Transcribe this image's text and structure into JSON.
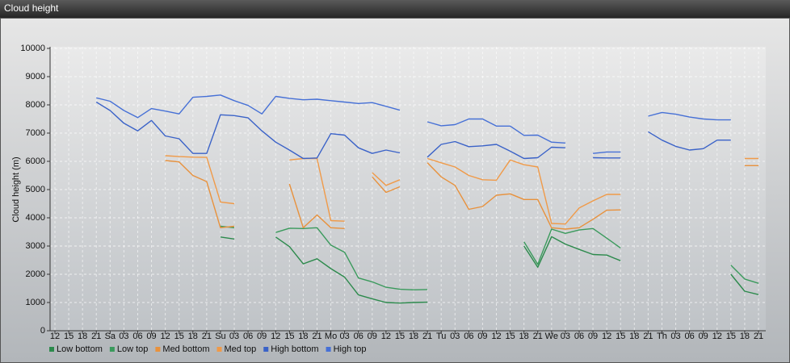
{
  "chart_data": {
    "type": "line",
    "title": "Cloud height",
    "y_label": "Cloud height (m)",
    "categories": [
      "12",
      "15",
      "18",
      "21",
      "Sa",
      "03",
      "06",
      "09",
      "12",
      "15",
      "18",
      "21",
      "Su",
      "03",
      "06",
      "09",
      "12",
      "15",
      "18",
      "21",
      "Mo",
      "03",
      "06",
      "09",
      "12",
      "15",
      "18",
      "21",
      "Tu",
      "03",
      "06",
      "09",
      "12",
      "15",
      "18",
      "21",
      "We",
      "03",
      "06",
      "09",
      "12",
      "15",
      "18",
      "21",
      "Th",
      "03",
      "06",
      "09",
      "12",
      "15",
      "18",
      "21"
    ],
    "ylim": [
      0,
      10000
    ],
    "yticks": [
      0,
      1000,
      2000,
      3000,
      4000,
      5000,
      6000,
      7000,
      8000,
      9000,
      10000
    ],
    "grid": true,
    "legend": "bottom-left",
    "series": [
      {
        "name": "Low bottom",
        "color": "#2c8a4c",
        "values": [
          null,
          null,
          null,
          null,
          null,
          null,
          null,
          null,
          null,
          null,
          null,
          null,
          3320,
          3250,
          null,
          null,
          3320,
          2980,
          2370,
          2550,
          2200,
          1900,
          1270,
          1130,
          1000,
          980,
          1000,
          1010,
          null,
          null,
          null,
          null,
          null,
          null,
          3000,
          2250,
          3330,
          3070,
          2880,
          2700,
          2680,
          2480,
          null,
          null,
          null,
          null,
          null,
          null,
          null,
          2000,
          1400,
          1280
        ]
      },
      {
        "name": "Low top",
        "color": "#3a9a5c",
        "values": [
          null,
          null,
          null,
          null,
          null,
          null,
          null,
          null,
          null,
          null,
          null,
          null,
          3700,
          3650,
          null,
          null,
          3480,
          3630,
          3620,
          3650,
          3030,
          2780,
          1870,
          1730,
          1540,
          1470,
          1450,
          1460,
          null,
          null,
          null,
          null,
          null,
          null,
          3150,
          2350,
          3600,
          3450,
          3570,
          3620,
          3280,
          2930,
          null,
          null,
          null,
          null,
          null,
          null,
          null,
          2320,
          1830,
          1680
        ]
      },
      {
        "name": "Med bottom",
        "color": "#e8913c",
        "values": [
          null,
          null,
          null,
          null,
          null,
          null,
          null,
          null,
          6030,
          5980,
          5500,
          5280,
          3650,
          3700,
          null,
          null,
          null,
          5200,
          3650,
          4100,
          3650,
          3620,
          null,
          5450,
          4900,
          5100,
          null,
          5950,
          5450,
          5150,
          4300,
          4400,
          4800,
          4850,
          4650,
          4650,
          3650,
          3600,
          3650,
          3950,
          4270,
          4280,
          null,
          null,
          null,
          null,
          null,
          null,
          null,
          null,
          5850,
          5850
        ]
      },
      {
        "name": "Med top",
        "color": "#f09a48",
        "values": [
          null,
          null,
          null,
          null,
          null,
          null,
          null,
          null,
          6200,
          6170,
          6150,
          6140,
          4560,
          4500,
          null,
          null,
          null,
          6050,
          6100,
          6100,
          3900,
          3880,
          null,
          5600,
          5150,
          5350,
          null,
          6100,
          5950,
          5800,
          5500,
          5350,
          5330,
          6050,
          5880,
          5800,
          3800,
          3780,
          4350,
          4600,
          4830,
          4830,
          null,
          null,
          null,
          null,
          null,
          null,
          null,
          null,
          6100,
          6100
        ]
      },
      {
        "name": "High bottom",
        "color": "#3a62c8",
        "values": [
          null,
          null,
          null,
          8100,
          7800,
          7350,
          7080,
          7450,
          6900,
          6800,
          6280,
          6280,
          7650,
          7620,
          7540,
          7080,
          6680,
          6400,
          6100,
          6120,
          6980,
          6930,
          6480,
          6280,
          6400,
          6300,
          null,
          6150,
          6600,
          6700,
          6520,
          6550,
          6600,
          6360,
          6100,
          6130,
          6500,
          6480,
          null,
          6130,
          6120,
          6120,
          null,
          7050,
          6750,
          6530,
          6400,
          6450,
          6750,
          6750,
          null,
          null
        ]
      },
      {
        "name": "High top",
        "color": "#4670d6",
        "values": [
          null,
          null,
          null,
          8250,
          8130,
          7800,
          7550,
          7870,
          7780,
          7680,
          8270,
          8300,
          8350,
          8150,
          7980,
          7680,
          8300,
          8230,
          8180,
          8200,
          8150,
          8100,
          8050,
          8080,
          7950,
          7810,
          null,
          7400,
          7260,
          7300,
          7500,
          7500,
          7250,
          7250,
          6920,
          6930,
          6680,
          6650,
          null,
          6280,
          6330,
          6330,
          null,
          7600,
          7730,
          7670,
          7570,
          7500,
          7470,
          7470,
          null,
          null
        ]
      }
    ]
  }
}
